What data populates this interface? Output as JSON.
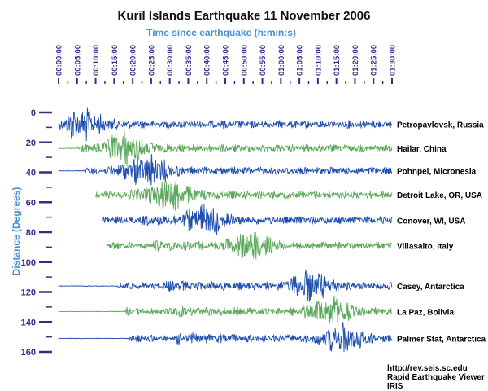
{
  "chart_data": {
    "type": "line",
    "title": "Kuril Islands Earthquake 11 November 2006",
    "xlabel": "Time since earthquake (h:min:s)",
    "ylabel": "Distance (Degrees)",
    "x_ticks": [
      "00:00:00",
      "00:05:00",
      "00:10:00",
      "00:15:00",
      "00:20:00",
      "00:25:00",
      "00:30:00",
      "00:35:00",
      "00:40:00",
      "00:45:00",
      "00:50:00",
      "00:55:00",
      "01:00:00",
      "01:05:00",
      "01:10:00",
      "01:15:00",
      "01:20:00",
      "01:25:00",
      "01:30:00"
    ],
    "x_range_minutes": [
      0,
      90
    ],
    "y_ticks": [
      0,
      20,
      40,
      60,
      80,
      100,
      120,
      140,
      160
    ],
    "ylim": [
      0,
      160
    ],
    "y_inverted": true,
    "grid": false,
    "legend": "none",
    "series": [
      {
        "name": "Petropavlovsk, Russia",
        "distance_deg": 8,
        "start_min": 0,
        "p_arrival_min": 2,
        "s_arrival_min": 3,
        "peak_min": 6,
        "color": "#1f4fae"
      },
      {
        "name": "Hailar, China",
        "distance_deg": 24,
        "start_min": 0,
        "p_arrival_min": 5,
        "s_arrival_min": 12,
        "peak_min": 18,
        "color": "#5aa85a"
      },
      {
        "name": "Pohnpei, Micronesia",
        "distance_deg": 39,
        "start_min": 0,
        "p_arrival_min": 7,
        "s_arrival_min": 14,
        "peak_min": 24,
        "color": "#1f4fae"
      },
      {
        "name": "Detroit Lake, OR, USA",
        "distance_deg": 55,
        "start_min": 10,
        "p_arrival_min": 10,
        "s_arrival_min": 19,
        "peak_min": 30,
        "color": "#5aa85a"
      },
      {
        "name": "Conover, WI, USA",
        "distance_deg": 72,
        "start_min": 12,
        "p_arrival_min": 12,
        "s_arrival_min": 22,
        "peak_min": 40,
        "color": "#1f4fae"
      },
      {
        "name": "Villasalto, Italy",
        "distance_deg": 89,
        "start_min": 13,
        "p_arrival_min": 13,
        "s_arrival_min": 25,
        "peak_min": 52,
        "color": "#5aa85a"
      },
      {
        "name": "Casey, Antarctica",
        "distance_deg": 116,
        "start_min": 0,
        "p_arrival_min": 16,
        "s_arrival_min": 28,
        "peak_min": 68,
        "color": "#1f4fae"
      },
      {
        "name": "La Paz, Bolivia",
        "distance_deg": 133,
        "start_min": 0,
        "p_arrival_min": 18,
        "s_arrival_min": 30,
        "peak_min": 74,
        "color": "#5aa85a"
      },
      {
        "name": "Palmer Stat, Antarctica",
        "distance_deg": 151,
        "start_min": 0,
        "p_arrival_min": 19,
        "s_arrival_min": 32,
        "peak_min": 77,
        "color": "#1f4fae"
      }
    ]
  },
  "credits": [
    "http://rev.seis.sc.edu",
    "Rapid Earthquake Viewer",
    "IRIS"
  ],
  "colors": {
    "axis": "#3b2a86",
    "axis_label": "#4a8fd0",
    "trace_blue": "#1f4fae",
    "trace_green": "#5aa85a"
  }
}
